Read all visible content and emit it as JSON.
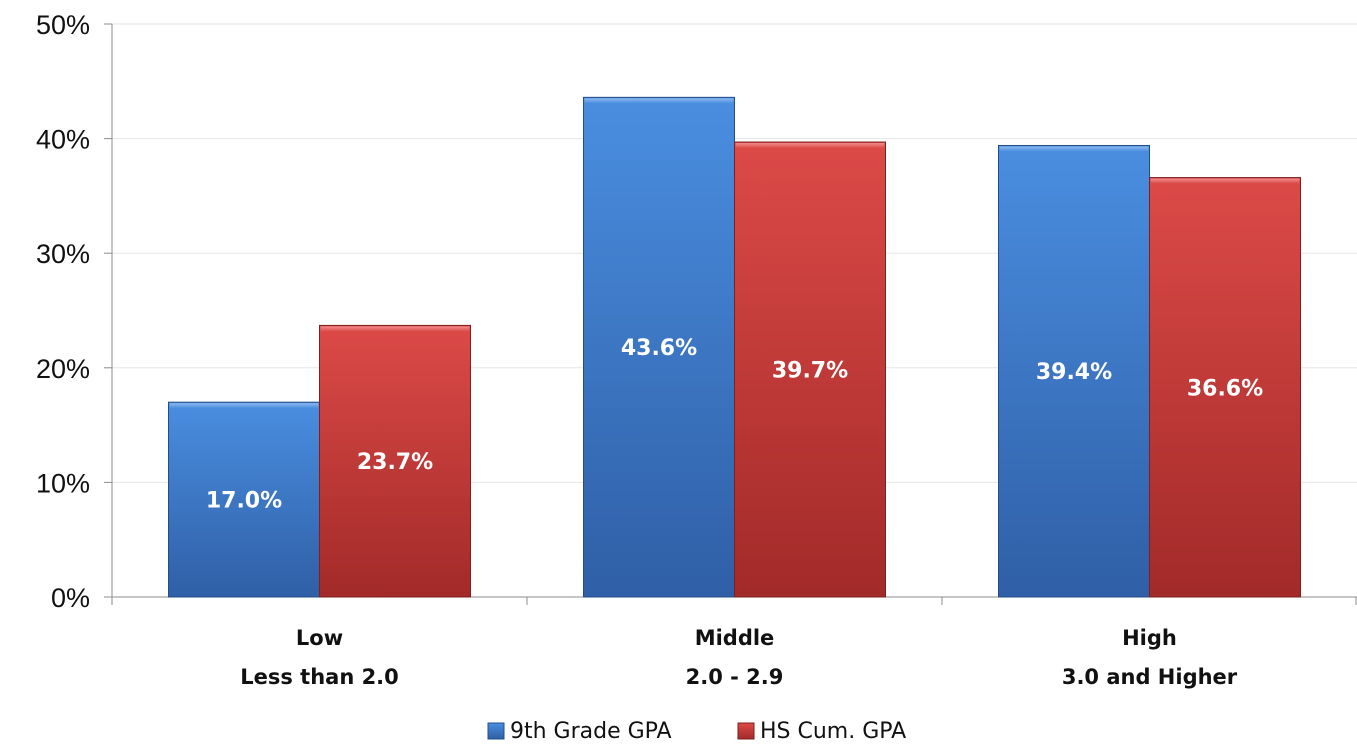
{
  "colors": {
    "series_blue": "#3f7fcf",
    "series_red": "#c93b39",
    "axis": "#8c8c8c",
    "grid": "#e6e6e6",
    "label_text": "#ffffff"
  },
  "chart_data": {
    "type": "bar",
    "title": "",
    "xlabel": "",
    "ylabel": "",
    "ylim": [
      0,
      50
    ],
    "y_ticks": [
      "0%",
      "10%",
      "20%",
      "30%",
      "40%",
      "50%"
    ],
    "grid": "horizontal",
    "legend_position": "bottom",
    "categories": [
      {
        "line1": "Low",
        "line2": "Less than 2.0"
      },
      {
        "line1": "Middle",
        "line2": "2.0 - 2.9"
      },
      {
        "line1": "High",
        "line2": "3.0 and Higher"
      }
    ],
    "series": [
      {
        "name": "9th Grade GPA",
        "values": [
          17.0,
          43.6,
          39.4
        ],
        "labels": [
          "17.0%",
          "43.6%",
          "39.4%"
        ]
      },
      {
        "name": "HS Cum. GPA",
        "values": [
          23.7,
          39.7,
          36.6
        ],
        "labels": [
          "23.7%",
          "39.7%",
          "36.6%"
        ]
      }
    ]
  }
}
